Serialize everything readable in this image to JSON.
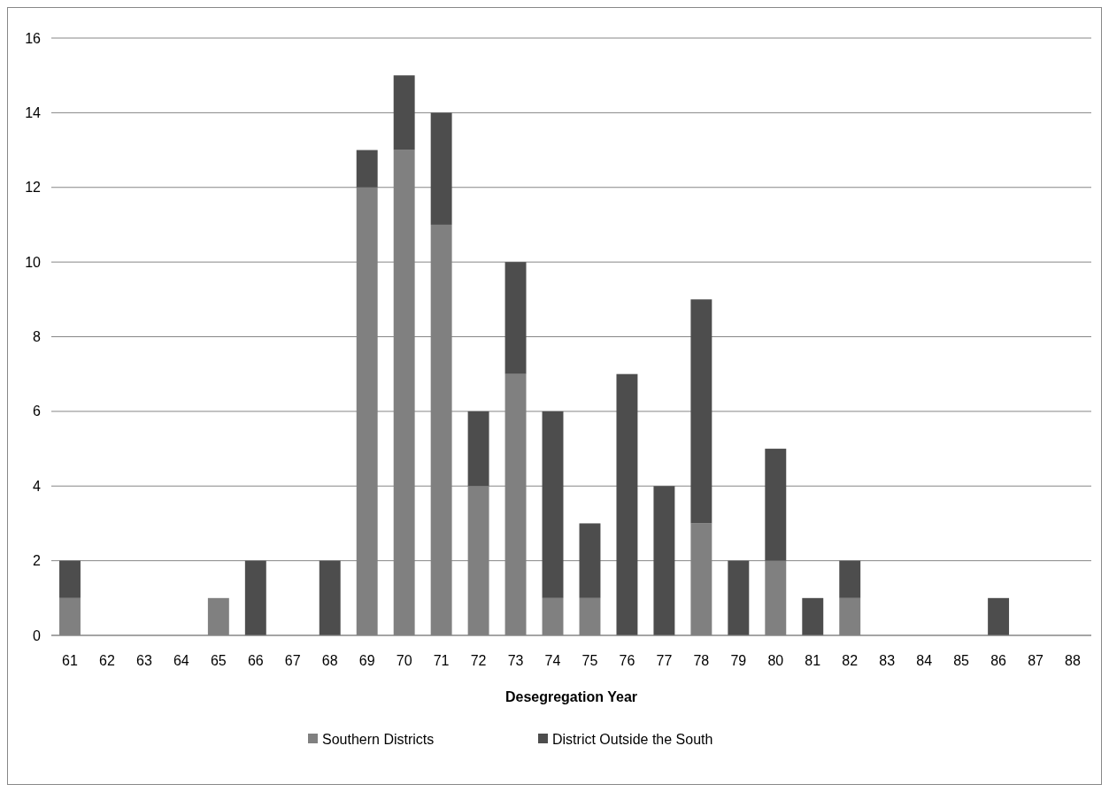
{
  "chart_data": {
    "type": "bar",
    "stacked": true,
    "xlabel": "Desegregation Year",
    "categories": [
      "61",
      "62",
      "63",
      "64",
      "65",
      "66",
      "67",
      "68",
      "69",
      "70",
      "71",
      "72",
      "73",
      "74",
      "75",
      "76",
      "77",
      "78",
      "79",
      "80",
      "81",
      "82",
      "83",
      "84",
      "85",
      "86",
      "87",
      "88"
    ],
    "series": [
      {
        "name": "Southern Districts",
        "color": "#808080",
        "values": [
          1,
          0,
          0,
          0,
          1,
          0,
          0,
          0,
          12,
          13,
          11,
          4,
          7,
          1,
          1,
          0,
          0,
          3,
          0,
          2,
          0,
          1,
          0,
          0,
          0,
          0,
          0,
          0
        ]
      },
      {
        "name": "District Outside the South",
        "color": "#4d4d4d",
        "values": [
          1,
          0,
          0,
          0,
          0,
          2,
          0,
          2,
          1,
          2,
          3,
          2,
          3,
          5,
          2,
          7,
          4,
          6,
          2,
          3,
          1,
          1,
          0,
          0,
          0,
          1,
          0,
          0
        ]
      }
    ],
    "ylim": [
      0,
      16
    ],
    "yticks": [
      0,
      2,
      4,
      6,
      8,
      10,
      12,
      14,
      16
    ],
    "grid": "y",
    "legend": "bottom"
  }
}
